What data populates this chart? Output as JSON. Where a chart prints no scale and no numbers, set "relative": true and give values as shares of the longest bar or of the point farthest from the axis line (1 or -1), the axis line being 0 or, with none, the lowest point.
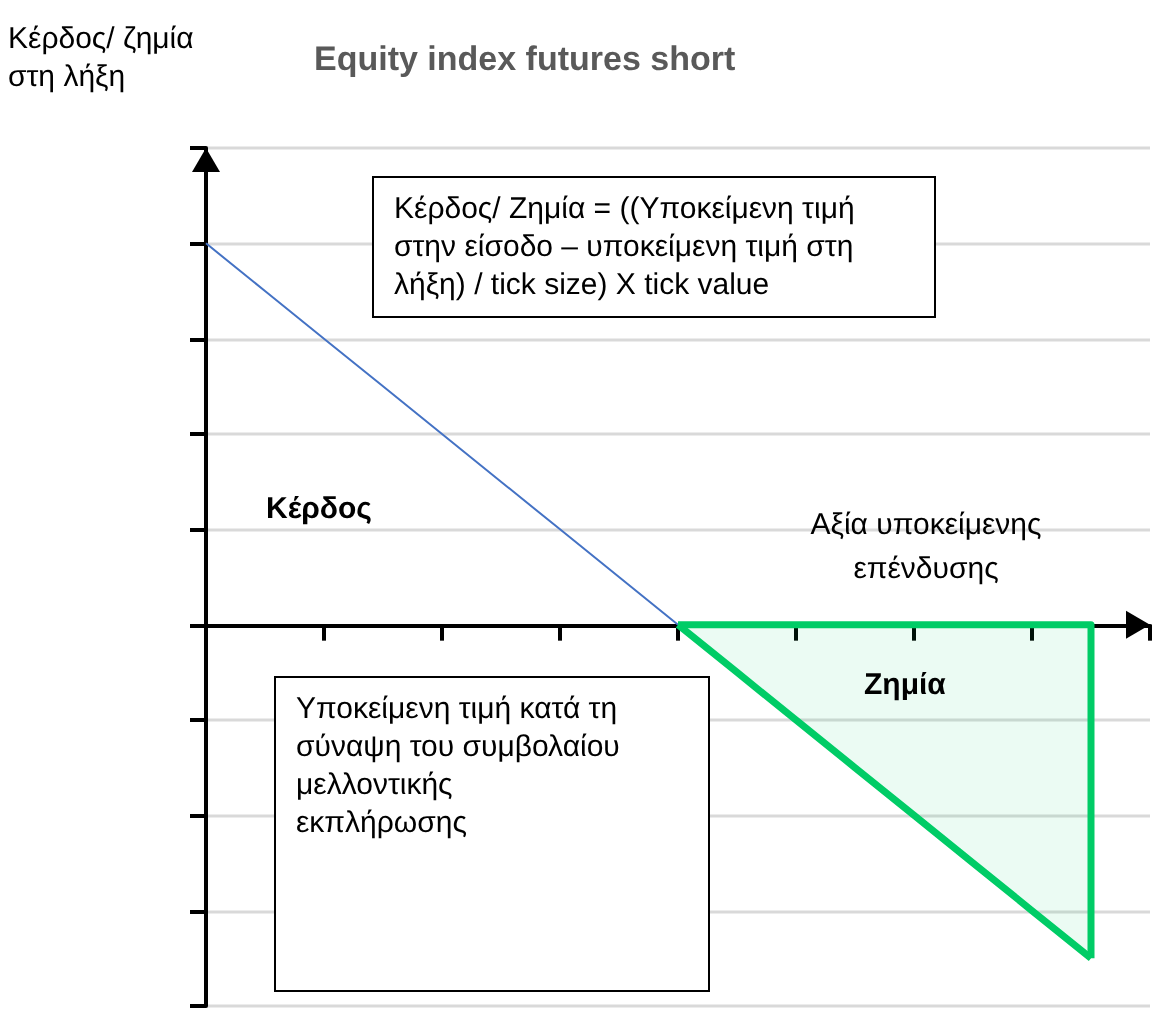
{
  "chart_data": {
    "type": "line",
    "title": "Equity index futures short",
    "ylabel": "Κέρδος/ ζημία στη λήξη",
    "xlabel": "Αξία υποκείμενης επένδυσης",
    "annotations": [
      "Κέρδος/ Ζημία = ((Υποκείμενη τιμή στην είσοδο – υποκείμενη τιμή στη λήξη) / tick size) X tick value",
      "Κέρδος",
      "Ζημία",
      "Υποκείμενη τιμή κατά τη σύναψη του συμβολαίου μελλοντικής εκπλήρωσης"
    ],
    "categories": [
      null,
      null,
      null,
      null,
      null,
      null,
      null,
      null,
      null,
      null,
      null,
      null,
      null,
      null,
      null,
      null,
      null
    ],
    "series": [
      {
        "color": "#4472c4",
        "values": [
          1,
          0.875,
          0.75,
          0.625,
          0.5,
          0.375,
          0.25,
          0.125,
          0,
          null,
          null,
          null,
          null,
          null,
          null,
          null,
          null
        ]
      },
      {
        "type": "area",
        "color": "#00cc66",
        "values": [
          null,
          null,
          null,
          null,
          null,
          null,
          null,
          null,
          0,
          -0.125,
          -0.25,
          -0.375,
          -0.5,
          -0.625,
          -0.75,
          -0.875,
          null
        ]
      }
    ],
    "relative": true,
    "grid": "y",
    "marker": "none"
  }
}
